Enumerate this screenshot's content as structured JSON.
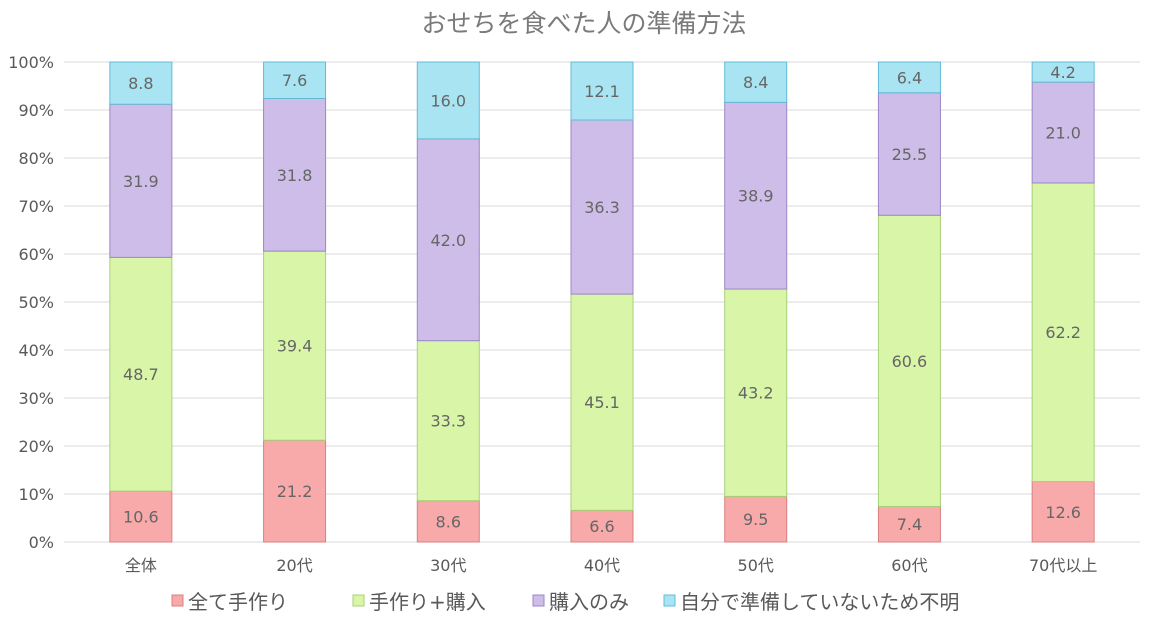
{
  "chart_data": {
    "type": "bar",
    "stacked": "percent",
    "title": "おせちを食べた人の準備方法",
    "categories": [
      "全体",
      "20代",
      "30代",
      "40代",
      "50代",
      "60代",
      "70代以上"
    ],
    "series": [
      {
        "name": "全て手作り",
        "color": "#f8a9a9",
        "values": [
          10.6,
          21.2,
          8.6,
          6.6,
          9.5,
          7.4,
          12.6
        ]
      },
      {
        "name": "手作り+購入",
        "color": "#d8f5a8",
        "values": [
          48.7,
          39.4,
          33.3,
          45.1,
          43.2,
          60.6,
          62.2
        ]
      },
      {
        "name": "購入のみ",
        "color": "#cdbde8",
        "values": [
          31.9,
          31.8,
          42.0,
          36.3,
          38.9,
          25.5,
          21.0
        ]
      },
      {
        "name": "自分で準備していないため不明",
        "color": "#a9e4f3",
        "values": [
          8.8,
          7.6,
          16.0,
          12.1,
          8.4,
          6.4,
          4.2
        ]
      }
    ],
    "data_labels": [
      [
        "10.6",
        "21.2",
        "8.6",
        "6.6",
        "9.5",
        "7.4",
        "12.6"
      ],
      [
        "48.7",
        "39.4",
        "33.3",
        "45.1",
        "43.2",
        "60.6",
        "62.2"
      ],
      [
        "31.9",
        "31.8",
        "42.0",
        "36.3",
        "38.9",
        "25.5",
        "21.0"
      ],
      [
        "8.8",
        "7.6",
        "16.0",
        "12.1",
        "8.4",
        "6.4",
        "4.2"
      ]
    ],
    "y_ticks": [
      "0%",
      "10%",
      "20%",
      "30%",
      "40%",
      "50%",
      "60%",
      "70%",
      "80%",
      "90%",
      "100%"
    ],
    "ylim": [
      0,
      100
    ],
    "grid": true,
    "legend_position": "bottom"
  }
}
